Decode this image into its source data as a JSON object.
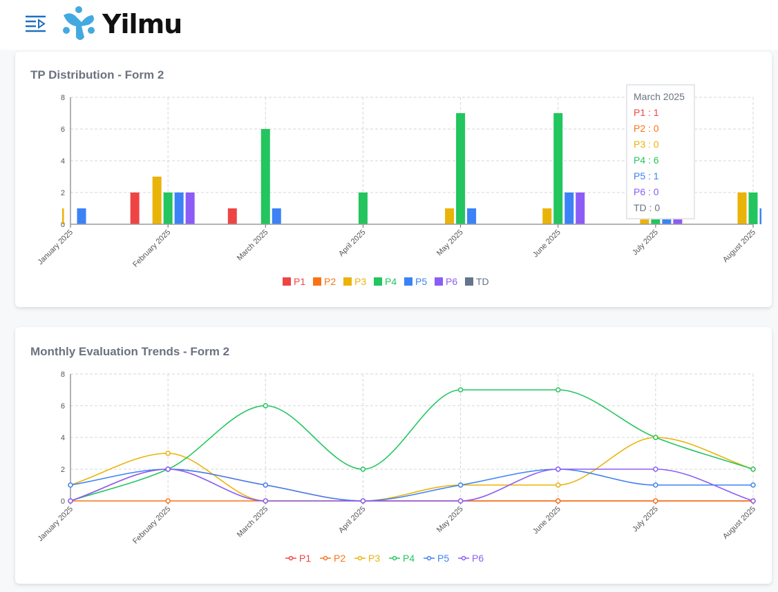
{
  "header": {
    "brand": "Yilmu",
    "menu_icon": "menu-collapse-icon"
  },
  "colors": {
    "P1": "#ef4444",
    "P2": "#f97316",
    "P3": "#eab308",
    "P4": "#22c55e",
    "P5": "#3b82f6",
    "P6": "#8b5cf6",
    "TD": "#64748b"
  },
  "chart_data": [
    {
      "type": "bar",
      "title": "TP Distribution - Form 2",
      "ylim": [
        0,
        8
      ],
      "yticks": [
        0,
        2,
        4,
        6,
        8
      ],
      "grid": true,
      "legend": "bottom",
      "categories": [
        "January 2025",
        "February 2025",
        "March 2025",
        "April 2025",
        "May 2025",
        "June 2025",
        "July 2025",
        "August 2025"
      ],
      "series": [
        {
          "name": "P1",
          "values": [
            0,
            2,
            1,
            0,
            0,
            0,
            0,
            0
          ]
        },
        {
          "name": "P2",
          "values": [
            0,
            0,
            0,
            0,
            0,
            0,
            0,
            0
          ]
        },
        {
          "name": "P3",
          "values": [
            1,
            3,
            0,
            0,
            1,
            1,
            4,
            2
          ]
        },
        {
          "name": "P4",
          "values": [
            0,
            2,
            6,
            2,
            7,
            7,
            4,
            2
          ]
        },
        {
          "name": "P5",
          "values": [
            1,
            2,
            1,
            0,
            1,
            2,
            1,
            1
          ]
        },
        {
          "name": "P6",
          "values": [
            0,
            2,
            0,
            0,
            0,
            2,
            2,
            0
          ]
        },
        {
          "name": "TD",
          "values": [
            0,
            0,
            0,
            0,
            0,
            0,
            0,
            0
          ]
        }
      ],
      "tooltip": {
        "title": "March 2025",
        "rows": [
          "P1 : 1",
          "P2 : 0",
          "P3 : 0",
          "P4 : 6",
          "P5 : 1",
          "P6 : 0",
          "TD : 0"
        ]
      }
    },
    {
      "type": "line",
      "title": "Monthly Evaluation Trends - Form 2",
      "ylim": [
        0,
        8
      ],
      "yticks": [
        0,
        2,
        4,
        6,
        8
      ],
      "grid": true,
      "legend": "bottom",
      "categories": [
        "January 2025",
        "February 2025",
        "March 2025",
        "April 2025",
        "May 2025",
        "June 2025",
        "July 2025",
        "August 2025"
      ],
      "series": [
        {
          "name": "P1",
          "values": [
            0,
            2,
            1,
            0,
            0,
            0,
            0,
            0
          ]
        },
        {
          "name": "P2",
          "values": [
            0,
            0,
            0,
            0,
            0,
            0,
            0,
            0
          ]
        },
        {
          "name": "P3",
          "values": [
            1,
            3,
            0,
            0,
            1,
            1,
            4,
            2
          ]
        },
        {
          "name": "P4",
          "values": [
            0,
            2,
            6,
            2,
            7,
            7,
            4,
            2
          ]
        },
        {
          "name": "P5",
          "values": [
            1,
            2,
            1,
            0,
            1,
            2,
            1,
            1
          ]
        },
        {
          "name": "P6",
          "values": [
            0,
            2,
            0,
            0,
            0,
            2,
            2,
            0
          ]
        }
      ]
    }
  ]
}
